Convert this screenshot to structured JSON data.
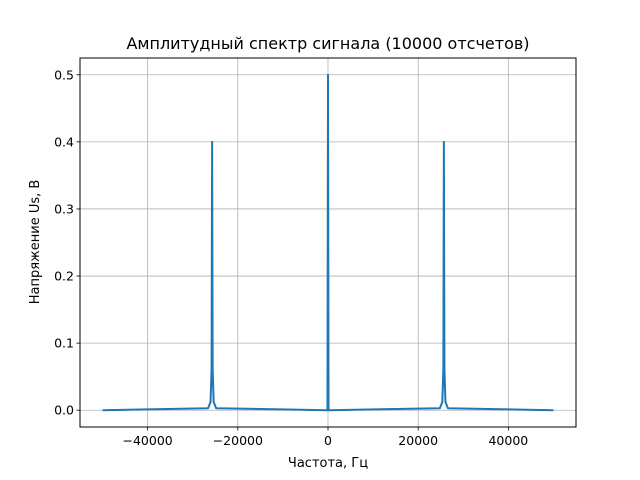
{
  "chart_data": {
    "type": "line",
    "title": "Амплитудный спектр сигнала (10000 отсчетов)",
    "xlabel": "Частота, Гц",
    "ylabel": "Напряжение Us, В",
    "xlim": [
      -55000,
      55000
    ],
    "ylim": [
      -0.025,
      0.525
    ],
    "grid": true,
    "x_ticks": [
      -40000,
      -20000,
      0,
      20000,
      40000
    ],
    "x_tick_labels": [
      "−40000",
      "−20000",
      "0",
      "20000",
      "40000"
    ],
    "y_ticks": [
      0.0,
      0.1,
      0.2,
      0.3,
      0.4,
      0.5
    ],
    "y_tick_labels": [
      "0.0",
      "0.1",
      "0.2",
      "0.3",
      "0.4",
      "0.5"
    ],
    "x_range": [
      -50000,
      50000
    ],
    "peaks": [
      {
        "x": -25700,
        "y": 0.4
      },
      {
        "x": 0,
        "y": 0.5
      },
      {
        "x": 25700,
        "y": 0.4
      }
    ],
    "baseline": 0.0,
    "line_color": "#1f77b4"
  }
}
